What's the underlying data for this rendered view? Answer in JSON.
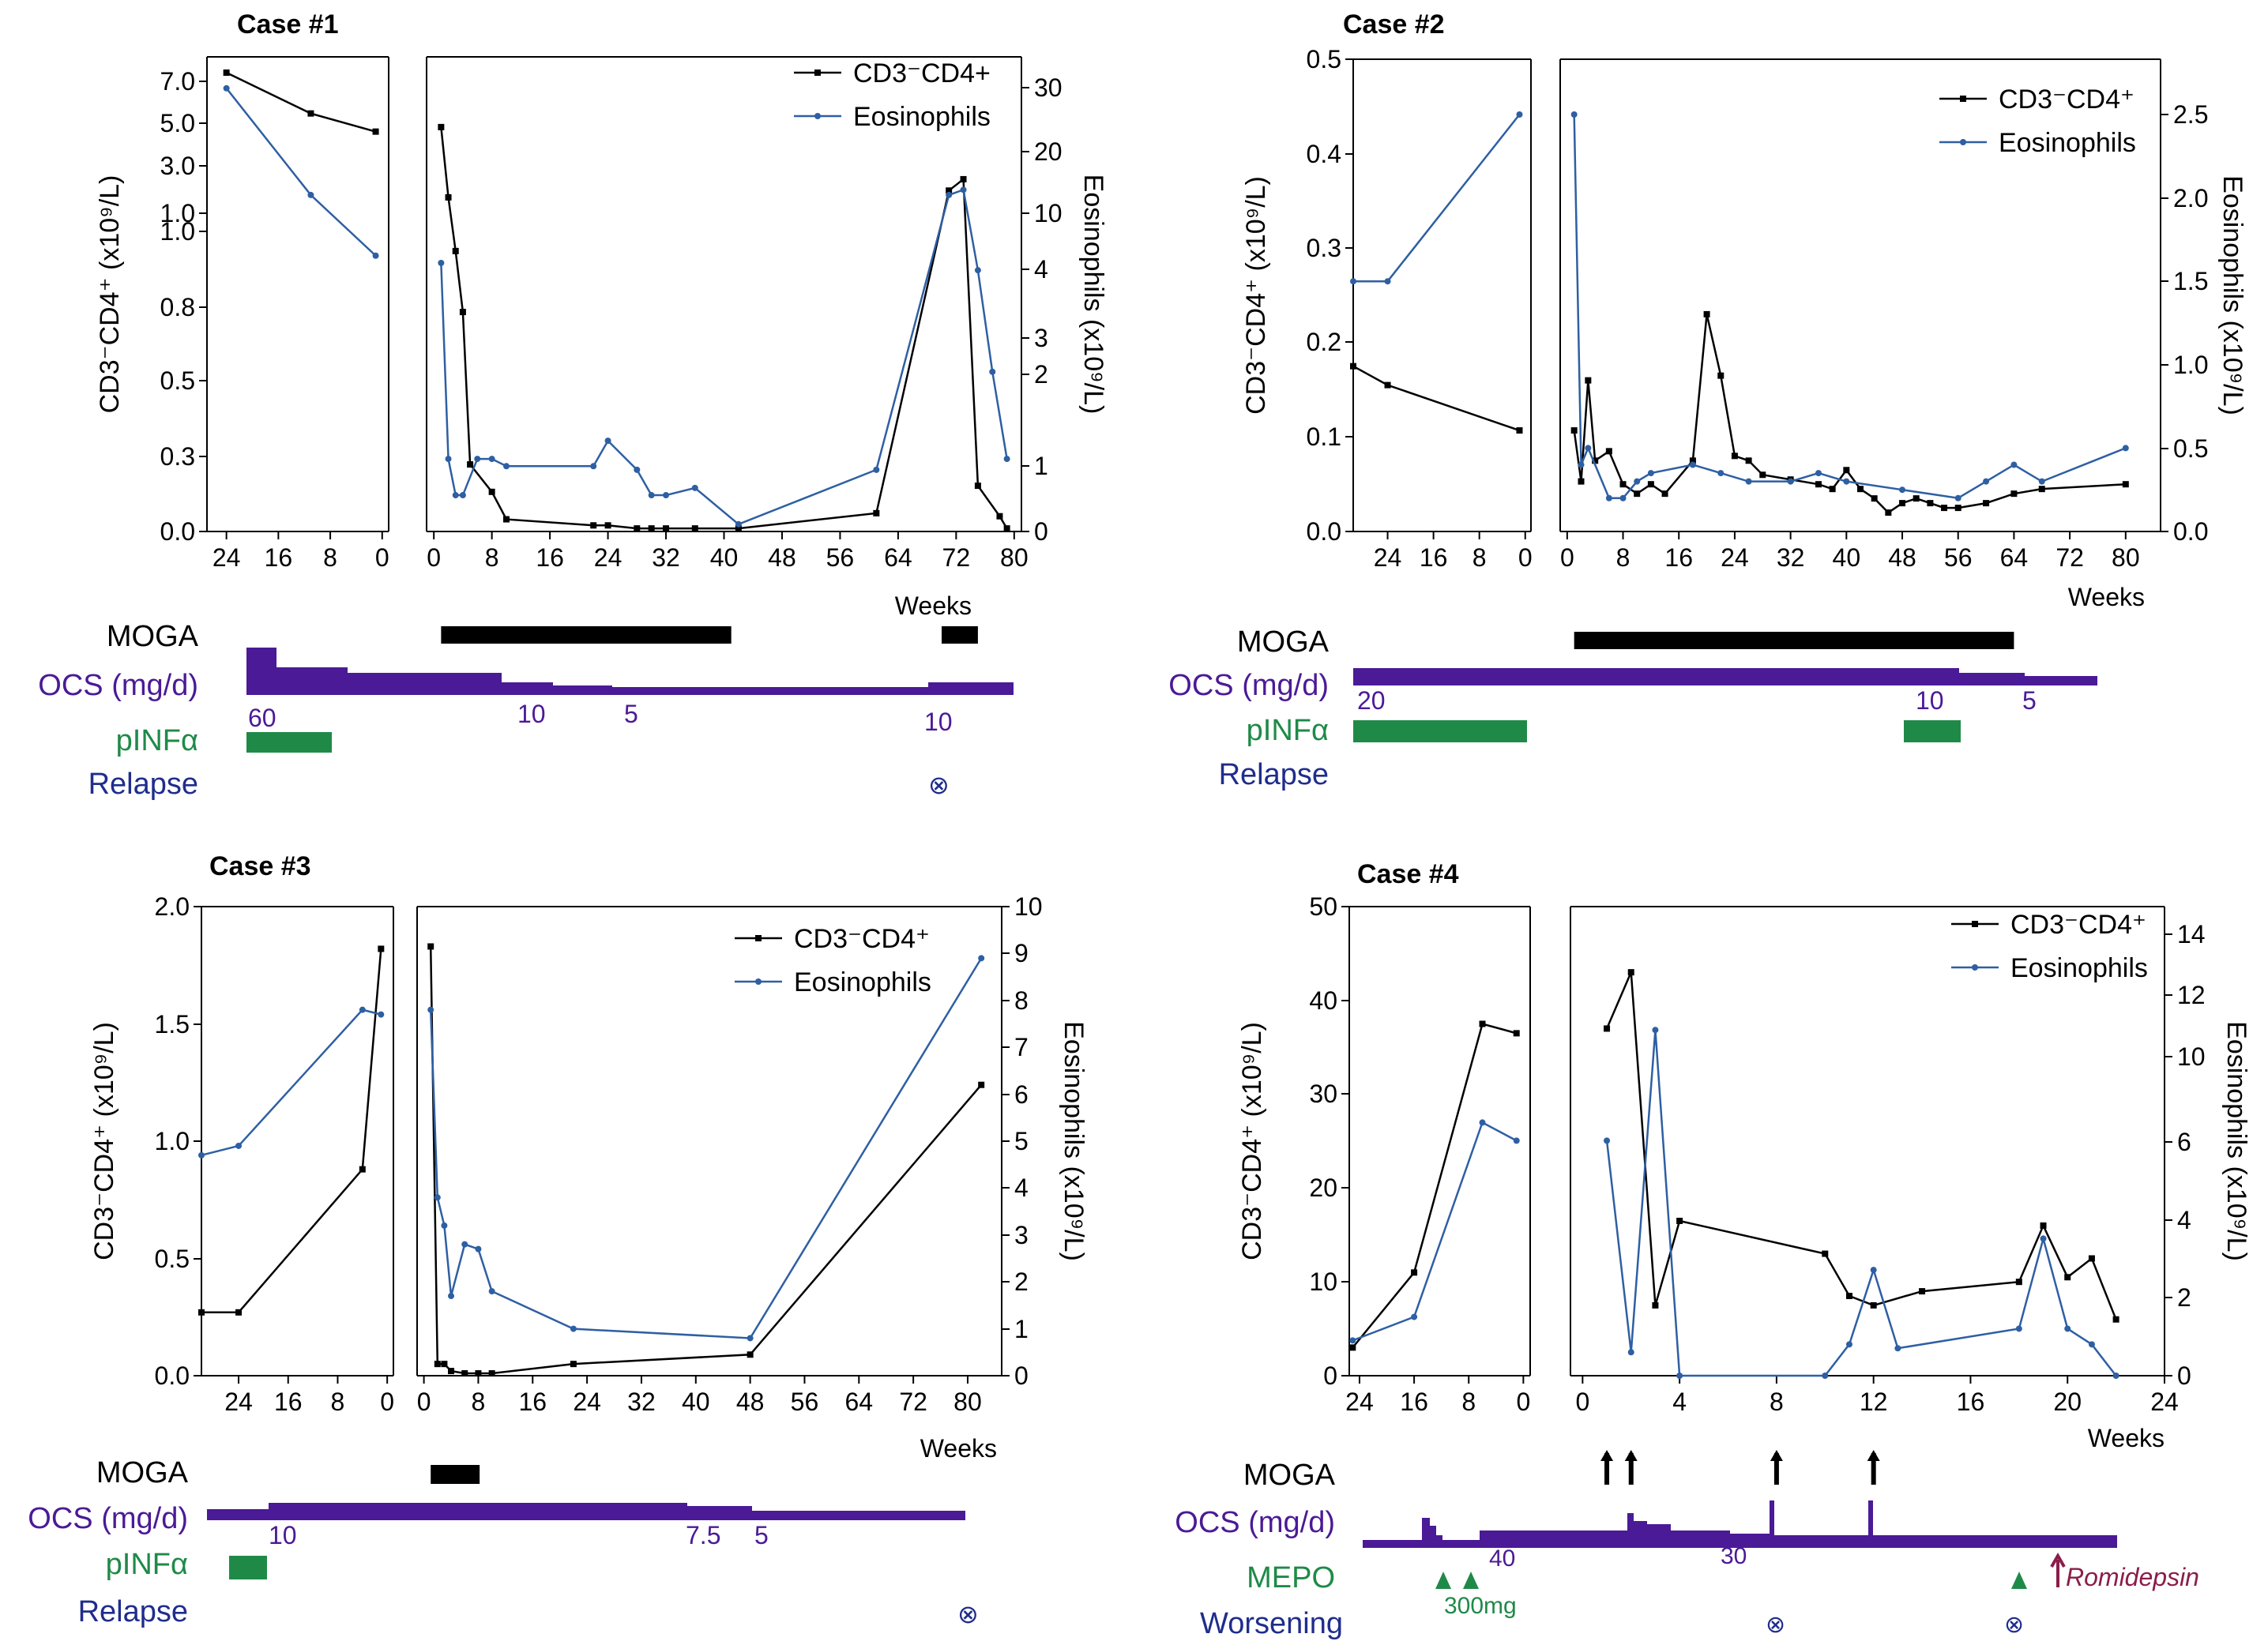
{
  "colors": {
    "cd4": "#000000",
    "eos": "#2e5fa3",
    "moga": "#000000",
    "ocs": "#4b1a96",
    "pinf": "#1f8a48",
    "relapse": "#1f2d8c",
    "mepo": "#1f8a48",
    "romidepsin": "#8b1d4a"
  },
  "weeks_label": "Weeks",
  "ylabel_cd4": "CD3⁻CD4⁺ (x10⁹/L)",
  "ylabel_eos": "Eosinophils (x10⁹/L)",
  "chart_data": [
    {
      "type": "line",
      "title": "Case #1",
      "pre_xticks": [
        "24",
        "16",
        "8",
        "0"
      ],
      "post_xticks": [
        "0",
        "8",
        "16",
        "24",
        "32",
        "40",
        "48",
        "56",
        "64",
        "72",
        "80"
      ],
      "left_yticks": [
        "0.0",
        "0.3",
        "0.5",
        "0.8",
        "1.0",
        "1.0",
        "3.0",
        "5.0",
        "7.0"
      ],
      "right_yticks": [
        "0",
        "1",
        "2",
        "3",
        "4",
        "10",
        "20",
        "30"
      ],
      "legend": [
        "CD3⁻CD4+",
        "Eosinophils"
      ],
      "series": [
        {
          "name": "CD3⁻CD4+",
          "pre": [
            [
              -24,
              7.2
            ],
            [
              -11,
              5.4
            ],
            [
              -1,
              4.6
            ]
          ],
          "post": [
            [
              1,
              4.8
            ],
            [
              2,
              1.7
            ],
            [
              3,
              0.92
            ],
            [
              4,
              0.72
            ],
            [
              5,
              0.22
            ],
            [
              8,
              0.13
            ],
            [
              10,
              0.04
            ],
            [
              22,
              0.02
            ],
            [
              24,
              0.02
            ],
            [
              28,
              0.01
            ],
            [
              30,
              0.01
            ],
            [
              32,
              0.01
            ],
            [
              36,
              0.01
            ],
            [
              42,
              0.01
            ],
            [
              61,
              0.06
            ],
            [
              71,
              2.0
            ],
            [
              73,
              2.5
            ],
            [
              75,
              0.15
            ],
            [
              78,
              0.05
            ],
            [
              79,
              0.01
            ]
          ]
        },
        {
          "name": "Eosinophils",
          "pre": [
            [
              -24,
              29
            ],
            [
              -11,
              8.5
            ],
            [
              -1,
              3.8
            ]
          ],
          "post": [
            [
              1,
              3.7
            ],
            [
              2,
              1.0
            ],
            [
              3,
              0.5
            ],
            [
              4,
              0.5
            ],
            [
              6,
              1.0
            ],
            [
              8,
              1.0
            ],
            [
              10,
              0.9
            ],
            [
              22,
              0.9
            ],
            [
              24,
              1.25
            ],
            [
              28,
              0.85
            ],
            [
              30,
              0.5
            ],
            [
              32,
              0.5
            ],
            [
              36,
              0.6
            ],
            [
              42,
              0.1
            ],
            [
              61,
              0.85
            ],
            [
              71,
              8.5
            ],
            [
              73,
              9.5
            ],
            [
              75,
              3.6
            ],
            [
              77,
              2.2
            ],
            [
              79,
              1.0
            ]
          ]
        }
      ],
      "tracks": {
        "moga_label": "MOGA",
        "ocs_label": "OCS (mg/d)",
        "pinf_label": "pINFα",
        "relapse_label": "Relapse",
        "ocs_values": [
          "60",
          "10",
          "5",
          "10"
        ],
        "relapse_symbol": "⊗"
      }
    },
    {
      "type": "line",
      "title": "Case #2",
      "pre_xticks": [
        "24",
        "16",
        "8",
        "0"
      ],
      "post_xticks": [
        "0",
        "8",
        "16",
        "24",
        "32",
        "40",
        "48",
        "56",
        "64",
        "72",
        "80"
      ],
      "left_yticks": [
        "0.0",
        "0.1",
        "0.2",
        "0.3",
        "0.4",
        "0.5"
      ],
      "right_yticks": [
        "0.0",
        "0.5",
        "1.0",
        "1.5",
        "2.0",
        "2.5"
      ],
      "legend": [
        "CD3⁻CD4⁺",
        "Eosinophils"
      ],
      "series": [
        {
          "name": "CD3⁻CD4⁺",
          "pre": [
            [
              -30,
              0.175
            ],
            [
              -24,
              0.155
            ],
            [
              -1,
              0.107
            ]
          ],
          "post": [
            [
              1,
              0.107
            ],
            [
              2,
              0.053
            ],
            [
              3,
              0.16
            ],
            [
              4,
              0.075
            ],
            [
              6,
              0.085
            ],
            [
              8,
              0.05
            ],
            [
              10,
              0.04
            ],
            [
              12,
              0.05
            ],
            [
              14,
              0.04
            ],
            [
              18,
              0.075
            ],
            [
              20,
              0.23
            ],
            [
              22,
              0.165
            ],
            [
              24,
              0.08
            ],
            [
              26,
              0.075
            ],
            [
              28,
              0.06
            ],
            [
              32,
              0.055
            ],
            [
              36,
              0.05
            ],
            [
              38,
              0.045
            ],
            [
              40,
              0.065
            ],
            [
              42,
              0.045
            ],
            [
              44,
              0.035
            ],
            [
              46,
              0.02
            ],
            [
              48,
              0.03
            ],
            [
              50,
              0.035
            ],
            [
              52,
              0.03
            ],
            [
              54,
              0.025
            ],
            [
              56,
              0.025
            ],
            [
              60,
              0.03
            ],
            [
              64,
              0.04
            ],
            [
              68,
              0.045
            ],
            [
              80,
              0.05
            ]
          ]
        },
        {
          "name": "Eosinophils",
          "pre": [
            [
              -30,
              1.5
            ],
            [
              -24,
              1.5
            ],
            [
              -1,
              2.5
            ]
          ],
          "post": [
            [
              1,
              2.5
            ],
            [
              2,
              0.4
            ],
            [
              3,
              0.5
            ],
            [
              6,
              0.2
            ],
            [
              8,
              0.2
            ],
            [
              10,
              0.3
            ],
            [
              12,
              0.35
            ],
            [
              18,
              0.4
            ],
            [
              22,
              0.35
            ],
            [
              26,
              0.3
            ],
            [
              32,
              0.3
            ],
            [
              36,
              0.35
            ],
            [
              40,
              0.3
            ],
            [
              48,
              0.25
            ],
            [
              56,
              0.2
            ],
            [
              60,
              0.3
            ],
            [
              64,
              0.4
            ],
            [
              68,
              0.3
            ],
            [
              80,
              0.5
            ]
          ]
        }
      ],
      "tracks": {
        "moga_label": "MOGA",
        "ocs_label": "OCS (mg/d)",
        "pinf_label": "pINFα",
        "relapse_label": "Relapse",
        "ocs_values": [
          "20",
          "10",
          "5"
        ]
      }
    },
    {
      "type": "line",
      "title": "Case #3",
      "pre_xticks": [
        "24",
        "16",
        "8",
        "0"
      ],
      "post_xticks": [
        "0",
        "8",
        "16",
        "24",
        "32",
        "40",
        "48",
        "56",
        "64",
        "72",
        "80"
      ],
      "left_yticks": [
        "0.0",
        "0.5",
        "1.0",
        "1.5",
        "2.0"
      ],
      "right_yticks": [
        "0",
        "1",
        "2",
        "3",
        "4",
        "5",
        "6",
        "7",
        "8",
        "9",
        "10"
      ],
      "legend": [
        "CD3⁻CD4⁺",
        "Eosinophils"
      ],
      "series": [
        {
          "name": "CD3⁻CD4⁺",
          "pre": [
            [
              -30,
              0.27
            ],
            [
              -24,
              0.27
            ],
            [
              -4,
              0.88
            ],
            [
              -1,
              1.82
            ]
          ],
          "post": [
            [
              1,
              1.83
            ],
            [
              2,
              0.05
            ],
            [
              3,
              0.05
            ],
            [
              4,
              0.02
            ],
            [
              6,
              0.01
            ],
            [
              8,
              0.01
            ],
            [
              10,
              0.01
            ],
            [
              22,
              0.05
            ],
            [
              48,
              0.09
            ],
            [
              82,
              1.24
            ]
          ]
        },
        {
          "name": "Eosinophils",
          "pre": [
            [
              -30,
              4.7
            ],
            [
              -24,
              4.9
            ],
            [
              -4,
              7.8
            ],
            [
              -1,
              7.7
            ]
          ],
          "post": [
            [
              1,
              7.8
            ],
            [
              2,
              3.8
            ],
            [
              3,
              3.2
            ],
            [
              4,
              1.7
            ],
            [
              6,
              2.8
            ],
            [
              8,
              2.7
            ],
            [
              10,
              1.8
            ],
            [
              22,
              1.0
            ],
            [
              48,
              0.8
            ],
            [
              82,
              8.9
            ]
          ]
        }
      ],
      "tracks": {
        "moga_label": "MOGA",
        "ocs_label": "OCS (mg/d)",
        "pinf_label": "pINFα",
        "relapse_label": "Relapse",
        "ocs_values": [
          "10",
          "7.5",
          "5"
        ],
        "relapse_symbol": "⊗"
      }
    },
    {
      "type": "line",
      "title": "Case #4",
      "pre_xticks": [
        "24",
        "16",
        "8",
        "0"
      ],
      "post_xticks": [
        "0",
        "4",
        "8",
        "12",
        "16",
        "20",
        "24"
      ],
      "left_yticks": [
        "0",
        "10",
        "20",
        "30",
        "40",
        "50"
      ],
      "right_yticks": [
        "0",
        "2",
        "4",
        "6",
        "10",
        "12",
        "14"
      ],
      "legend": [
        "CD3⁻CD4⁺",
        "Eosinophils"
      ],
      "series": [
        {
          "name": "CD3⁻CD4⁺",
          "pre": [
            [
              -25,
              3
            ],
            [
              -16,
              11
            ],
            [
              -6,
              37.5
            ],
            [
              -1,
              36.5
            ]
          ],
          "post": [
            [
              1,
              37
            ],
            [
              2,
              43
            ],
            [
              3,
              7.5
            ],
            [
              4,
              16.5
            ],
            [
              10,
              13
            ],
            [
              11,
              8.5
            ],
            [
              12,
              7.5
            ],
            [
              14,
              9
            ],
            [
              18,
              10
            ],
            [
              19,
              16
            ],
            [
              20,
              10.5
            ],
            [
              21,
              12.5
            ],
            [
              22,
              6
            ]
          ]
        },
        {
          "name": "Eosinophils",
          "pre": [
            [
              -25,
              0.9
            ],
            [
              -16,
              1.5
            ],
            [
              -6,
              8.0
            ],
            [
              -1,
              6.0
            ]
          ],
          "post": [
            [
              1,
              6.0
            ],
            [
              2,
              0.6
            ],
            [
              3,
              11.0
            ],
            [
              4,
              0
            ],
            [
              10,
              0
            ],
            [
              11,
              0.8
            ],
            [
              12,
              2.7
            ],
            [
              13,
              0.7
            ],
            [
              18,
              1.2
            ],
            [
              19,
              3.5
            ],
            [
              20,
              1.2
            ],
            [
              21,
              0.8
            ],
            [
              22,
              0
            ]
          ]
        }
      ],
      "tracks": {
        "moga_label": "MOGA",
        "ocs_label": "OCS (mg/d)",
        "mepo_label": "MEPO",
        "worsening_label": "Worsening",
        "ocs_values": [
          "40",
          "30"
        ],
        "mepo_dose": "300mg",
        "romidepsin_label": "Romidepsin",
        "worsening_symbol": "⊗"
      }
    }
  ]
}
